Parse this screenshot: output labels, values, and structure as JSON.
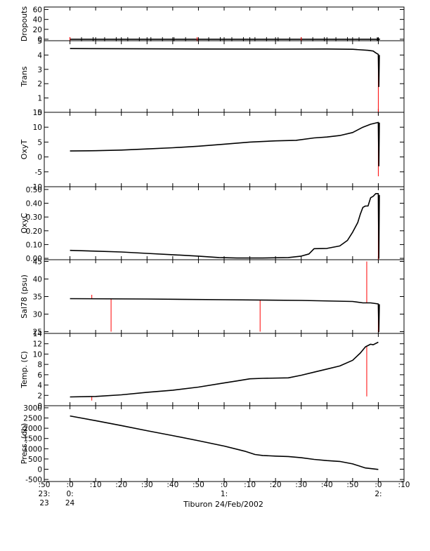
{
  "chart_data": {
    "type": "line",
    "caption": "Tiburon 24/Feb/2002",
    "time_axis": {
      "range_minutes": [
        -10,
        130
      ],
      "ticks": [
        {
          "t": -10,
          "top": ":50",
          "mid": "23:",
          "bot": "23"
        },
        {
          "t": 0,
          "top": ":0",
          "mid": "0:",
          "bot": "24"
        },
        {
          "t": 10,
          "top": ":10",
          "mid": "",
          "bot": ""
        },
        {
          "t": 20,
          "top": ":20",
          "mid": "",
          "bot": ""
        },
        {
          "t": 30,
          "top": ":30",
          "mid": "",
          "bot": ""
        },
        {
          "t": 40,
          "top": ":40",
          "mid": "",
          "bot": ""
        },
        {
          "t": 50,
          "top": ":50",
          "mid": "",
          "bot": ""
        },
        {
          "t": 60,
          "top": ":0",
          "mid": "1:",
          "bot": ""
        },
        {
          "t": 70,
          "top": ":10",
          "mid": "",
          "bot": ""
        },
        {
          "t": 80,
          "top": ":20",
          "mid": "",
          "bot": ""
        },
        {
          "t": 90,
          "top": ":30",
          "mid": "",
          "bot": ""
        },
        {
          "t": 100,
          "top": ":40",
          "mid": "",
          "bot": ""
        },
        {
          "t": 110,
          "top": ":50",
          "mid": "",
          "bot": ""
        },
        {
          "t": 120,
          "top": ":0",
          "mid": "2:",
          "bot": ""
        },
        {
          "t": 130,
          "top": ":10",
          "mid": "",
          "bot": ""
        }
      ]
    },
    "colors": {
      "series": "#000000",
      "spikes": "#ff0000",
      "frame": "#000000"
    },
    "panels": [
      {
        "name": "Dropouts",
        "ylabel": "Dropouts",
        "ylim": [
          -3,
          65
        ],
        "ticks": [
          0,
          20,
          40,
          60
        ],
        "tick_labels": [
          "0",
          "20",
          "40",
          "60"
        ],
        "markers": true,
        "series": [
          [
            0,
            0
          ],
          [
            120,
            0
          ]
        ],
        "spikes": []
      },
      {
        "name": "Trans",
        "ylabel": "Trans",
        "ylim": [
          0,
          5
        ],
        "ticks": [
          0,
          1,
          2,
          3,
          4,
          5
        ],
        "tick_labels": [
          "0",
          "1",
          "2",
          "3",
          "4",
          "5"
        ],
        "series": [
          [
            0,
            4.45
          ],
          [
            20,
            4.44
          ],
          [
            50,
            4.42
          ],
          [
            80,
            4.41
          ],
          [
            100,
            4.42
          ],
          [
            110,
            4.4
          ],
          [
            116,
            4.33
          ],
          [
            118,
            4.28
          ],
          [
            119,
            4.15
          ],
          [
            120,
            4.05
          ],
          [
            120.2,
            1.8
          ],
          [
            120.4,
            4.0
          ]
        ],
        "spikes": [
          [
            120,
            4.05,
            -0.2
          ]
        ]
      },
      {
        "name": "OxyT",
        "ylabel": "OxyT",
        "ylim": [
          -10,
          15
        ],
        "ticks": [
          -10,
          -5,
          0,
          5,
          10,
          15
        ],
        "tick_labels": [
          "-10",
          "-5",
          "0",
          "5",
          "10",
          "15"
        ],
        "series": [
          [
            0,
            2.0
          ],
          [
            10,
            2.1
          ],
          [
            20,
            2.3
          ],
          [
            30,
            2.7
          ],
          [
            40,
            3.1
          ],
          [
            50,
            3.6
          ],
          [
            60,
            4.3
          ],
          [
            70,
            5.0
          ],
          [
            80,
            5.4
          ],
          [
            88,
            5.6
          ],
          [
            95,
            6.4
          ],
          [
            100,
            6.7
          ],
          [
            105,
            7.2
          ],
          [
            110,
            8.2
          ],
          [
            114,
            10.0
          ],
          [
            117,
            11.0
          ],
          [
            120,
            11.6
          ],
          [
            120.2,
            -3.0
          ],
          [
            120.4,
            11.5
          ]
        ],
        "spikes": [
          [
            120,
            11.6,
            -6.5
          ]
        ]
      },
      {
        "name": "OxyC",
        "ylabel": "OxyC",
        "ylim": [
          -0.01,
          0.52
        ],
        "ticks": [
          0.0,
          0.1,
          0.2,
          0.3,
          0.4,
          0.5
        ],
        "tick_labels": [
          "0.00",
          "0.10",
          "0.20",
          "0.30",
          "0.40",
          "0.50"
        ],
        "series": [
          [
            0,
            0.058
          ],
          [
            10,
            0.052
          ],
          [
            20,
            0.046
          ],
          [
            30,
            0.036
          ],
          [
            40,
            0.026
          ],
          [
            50,
            0.016
          ],
          [
            58,
            0.006
          ],
          [
            65,
            0.002
          ],
          [
            75,
            0.002
          ],
          [
            85,
            0.006
          ],
          [
            90,
            0.016
          ],
          [
            93,
            0.032
          ],
          [
            95,
            0.07
          ],
          [
            100,
            0.072
          ],
          [
            105,
            0.09
          ],
          [
            108,
            0.13
          ],
          [
            110,
            0.19
          ],
          [
            112,
            0.26
          ],
          [
            113,
            0.32
          ],
          [
            114,
            0.37
          ],
          [
            115,
            0.38
          ],
          [
            116,
            0.38
          ],
          [
            117,
            0.44
          ],
          [
            118,
            0.45
          ],
          [
            119,
            0.47
          ],
          [
            120,
            0.47
          ],
          [
            120.2,
            0.0
          ],
          [
            120.4,
            0.46
          ]
        ],
        "spikes": [
          [
            120,
            0.47,
            -0.01
          ]
        ]
      },
      {
        "name": "Sal78",
        "ylabel": "Sal78 (psu)",
        "ylim": [
          24.5,
          45.5
        ],
        "ticks": [
          25,
          30,
          35,
          40,
          45
        ],
        "tick_labels": [
          "25",
          "30",
          "35",
          "40",
          "45"
        ],
        "series": [
          [
            0,
            34.4
          ],
          [
            30,
            34.3
          ],
          [
            60,
            34.1
          ],
          [
            90,
            33.9
          ],
          [
            110,
            33.6
          ],
          [
            114,
            33.2
          ],
          [
            117,
            33.2
          ],
          [
            120,
            32.9
          ],
          [
            120.2,
            25.0
          ],
          [
            120.4,
            32.8
          ]
        ],
        "spikes": [
          [
            8.5,
            34.4,
            35.5
          ],
          [
            16,
            34.3,
            25.0
          ],
          [
            74,
            34.0,
            25.0
          ],
          [
            115.5,
            33.3,
            45.0
          ],
          [
            120,
            32.9,
            25.0
          ]
        ]
      },
      {
        "name": "Temp",
        "ylabel": "Temp. (C)",
        "ylim": [
          0,
          14
        ],
        "ticks": [
          0,
          2,
          4,
          6,
          8,
          10,
          12,
          14
        ],
        "tick_labels": [
          "0",
          "2",
          "4",
          "6",
          "8",
          "10",
          "12",
          "14"
        ],
        "series": [
          [
            0,
            1.7
          ],
          [
            10,
            1.8
          ],
          [
            20,
            2.1
          ],
          [
            30,
            2.6
          ],
          [
            40,
            3.0
          ],
          [
            50,
            3.6
          ],
          [
            60,
            4.4
          ],
          [
            65,
            4.8
          ],
          [
            70,
            5.2
          ],
          [
            75,
            5.3
          ],
          [
            85,
            5.4
          ],
          [
            90,
            5.9
          ],
          [
            95,
            6.5
          ],
          [
            100,
            7.1
          ],
          [
            105,
            7.7
          ],
          [
            110,
            8.8
          ],
          [
            113,
            10.2
          ],
          [
            115,
            11.4
          ],
          [
            117,
            11.9
          ],
          [
            118,
            11.8
          ],
          [
            120,
            12.3
          ]
        ],
        "spikes": [
          [
            8.5,
            1.8,
            1.0
          ],
          [
            115.5,
            11.4,
            1.8
          ]
        ]
      },
      {
        "name": "Press",
        "ylabel": "Press. (db)",
        "ylim": [
          -600,
          3100
        ],
        "ticks": [
          -500,
          0,
          500,
          1000,
          1500,
          2000,
          2500,
          3000
        ],
        "tick_labels": [
          "-500",
          "0",
          "500",
          "1000",
          "1500",
          "2000",
          "2500",
          "3000"
        ],
        "series": [
          [
            0,
            2600
          ],
          [
            10,
            2370
          ],
          [
            20,
            2130
          ],
          [
            30,
            1880
          ],
          [
            40,
            1640
          ],
          [
            50,
            1390
          ],
          [
            60,
            1130
          ],
          [
            68,
            880
          ],
          [
            72,
            720
          ],
          [
            75,
            670
          ],
          [
            80,
            640
          ],
          [
            85,
            620
          ],
          [
            90,
            560
          ],
          [
            95,
            480
          ],
          [
            100,
            420
          ],
          [
            105,
            380
          ],
          [
            110,
            260
          ],
          [
            115,
            60
          ],
          [
            118,
            20
          ],
          [
            120,
            -10
          ]
        ],
        "spikes": []
      }
    ]
  }
}
